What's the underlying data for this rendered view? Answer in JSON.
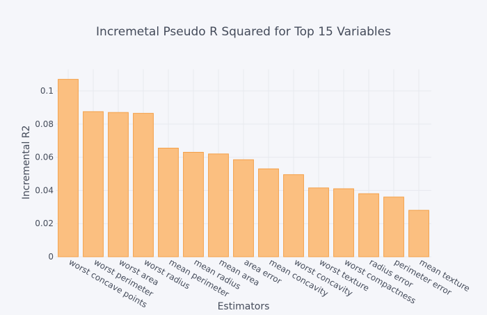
{
  "chart_data": {
    "type": "bar",
    "title": "Incremetal Pseudo R Squared for Top 15 Variables",
    "xlabel": "Estimators",
    "ylabel": "Incremental R2",
    "categories": [
      "worst concave points",
      "worst perimeter",
      "worst area",
      "worst radius",
      "mean perimeter",
      "mean radius",
      "mean area",
      "area error",
      "mean concavity",
      "worst concavity",
      "worst texture",
      "worst compactness",
      "radius error",
      "perimeter error",
      "mean texture"
    ],
    "values": [
      0.107,
      0.0875,
      0.087,
      0.0865,
      0.0655,
      0.063,
      0.062,
      0.0585,
      0.053,
      0.0495,
      0.0415,
      0.041,
      0.038,
      0.036,
      0.028
    ],
    "ylim": [
      0,
      0.113
    ],
    "yticks": [
      0,
      0.02,
      0.04,
      0.06,
      0.08,
      0.1
    ],
    "ytick_labels": [
      "0",
      "0.02",
      "0.04",
      "0.06",
      "0.08",
      "0.1"
    ],
    "grid": true,
    "bar_color": "#fbbf80",
    "bar_edge_color": "#f4a048",
    "legend": "none"
  }
}
